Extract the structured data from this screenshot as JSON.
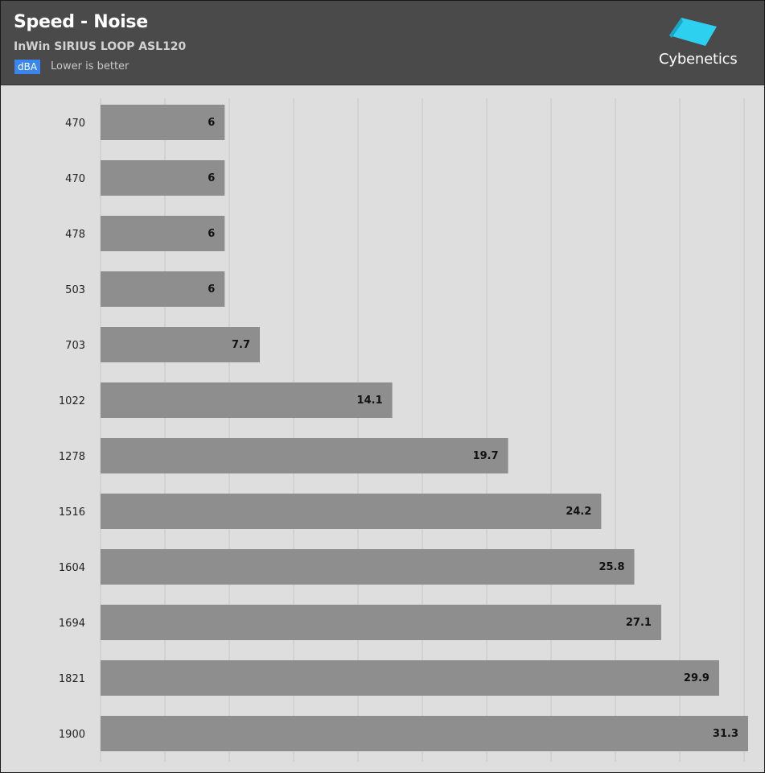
{
  "header": {
    "title": "Speed - Noise",
    "subtitle": "InWin SIRIUS LOOP ASL120",
    "unit_badge": "dBA",
    "note": "Lower is better",
    "logo_text": "Cybenetics",
    "logo_icon": "cybenetics-logo-icon"
  },
  "colors": {
    "header_bg": "#4a4a4a",
    "plot_bg": "#dedede",
    "bar": "#8e8e8e",
    "badge": "#3a86f0",
    "logo_cyan": "#2ed0f0"
  },
  "chart_data": {
    "type": "bar",
    "orientation": "horizontal",
    "title": "Speed - Noise",
    "subtitle": "InWin SIRIUS LOOP ASL120",
    "unit": "dBA",
    "categories": [
      "470",
      "470",
      "478",
      "503",
      "703",
      "1022",
      "1278",
      "1516",
      "1604",
      "1694",
      "1821",
      "1900"
    ],
    "values": [
      6,
      6,
      6,
      6,
      7.7,
      14.1,
      19.7,
      24.2,
      25.8,
      27.1,
      29.9,
      31.3
    ],
    "value_labels": [
      "6",
      "6",
      "6",
      "6",
      "7.7",
      "14.1",
      "19.7",
      "24.2",
      "25.8",
      "27.1",
      "29.9",
      "31.3"
    ],
    "xlim": [
      0,
      31.3
    ],
    "grid": true,
    "legend": "none"
  }
}
